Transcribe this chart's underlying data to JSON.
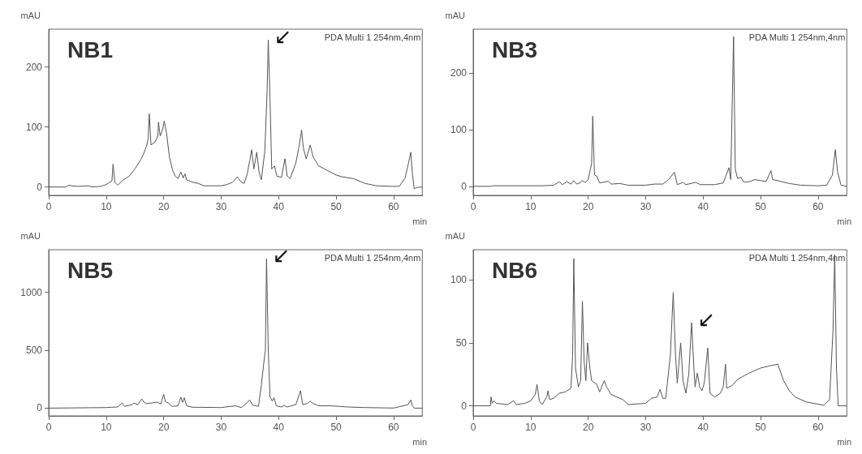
{
  "chart_data": [
    {
      "type": "line",
      "title": "NB1",
      "xlabel": "min",
      "ylabel": "mAU",
      "xlim": [
        0,
        65
      ],
      "xticks": [
        0,
        10,
        20,
        30,
        40,
        50,
        60
      ],
      "ylim": [
        -14,
        263
      ],
      "yticks": [
        0,
        100,
        200
      ],
      "grid": false,
      "marker": "none",
      "line_style": "solid",
      "annotations": [
        "PDA Multi 1 254nm,4nm",
        {
          "text": "↙",
          "x": 38.2,
          "y": 245
        }
      ],
      "series": [
        {
          "color": "#555555",
          "x": [
            0,
            3,
            3.5,
            4,
            5,
            7,
            7.5,
            9,
            10,
            11,
            11.2,
            11.5,
            12,
            13,
            14,
            15,
            16,
            16.5,
            17,
            17.3,
            17.5,
            17.8,
            18.5,
            19,
            19.1,
            19.4,
            19.8,
            20.1,
            20.5,
            21,
            21.5,
            22,
            22.5,
            23,
            23.4,
            23.7,
            24,
            25,
            26,
            27,
            30,
            31,
            32,
            32.8,
            33.5,
            34,
            34.5,
            35,
            35.3,
            35.7,
            36.2,
            36.6,
            37,
            37.6,
            38,
            38.2,
            38.5,
            38.8,
            39.3,
            39.7,
            40.5,
            41.1,
            41.5,
            42,
            43,
            43.6,
            44,
            44.3,
            44.8,
            45.5,
            46,
            47,
            48,
            49,
            50,
            51,
            53,
            55,
            57,
            60,
            61,
            62,
            62.6,
            63,
            63.3,
            63.6,
            64,
            65
          ],
          "values": [
            0,
            0,
            3,
            2,
            1,
            2,
            0,
            1,
            4,
            10,
            38,
            8,
            3,
            12,
            18,
            30,
            45,
            55,
            68,
            80,
            122,
            70,
            75,
            85,
            108,
            85,
            95,
            110,
            90,
            50,
            30,
            18,
            14,
            25,
            15,
            22,
            12,
            8,
            6,
            2,
            2,
            4,
            8,
            17,
            8,
            6,
            20,
            45,
            62,
            30,
            58,
            25,
            12,
            60,
            160,
            245,
            150,
            30,
            35,
            18,
            16,
            47,
            18,
            14,
            40,
            70,
            95,
            65,
            47,
            70,
            50,
            35,
            30,
            25,
            20,
            17,
            14,
            6,
            2,
            1,
            1,
            15,
            40,
            58,
            20,
            -3,
            -1,
            0
          ]
        }
      ]
    },
    {
      "type": "line",
      "title": "NB3",
      "xlabel": "min",
      "ylabel": "mAU",
      "xlim": [
        0,
        65
      ],
      "xticks": [
        0,
        10,
        20,
        30,
        40,
        50,
        60
      ],
      "ylim": [
        -16,
        278
      ],
      "yticks": [
        0,
        100,
        200
      ],
      "grid": false,
      "marker": "none",
      "line_style": "solid",
      "annotations": [
        "PDA Multi 1 254nm,4nm"
      ],
      "series": [
        {
          "color": "#555555",
          "x": [
            0,
            3,
            3.5,
            12,
            14,
            15,
            15.5,
            16.3,
            17,
            17.5,
            18,
            18.5,
            19,
            19.5,
            20,
            20.6,
            20.8,
            21.1,
            21.5,
            22,
            23.5,
            24,
            25.5,
            27,
            30,
            31.5,
            33,
            34,
            35,
            35.3,
            35.5,
            36.5,
            37,
            38.7,
            39.5,
            42,
            43.5,
            44.5,
            44.8,
            45.3,
            45.6,
            46,
            46.6,
            47,
            48,
            49,
            50,
            51,
            51.8,
            52.1,
            53,
            55,
            57,
            60,
            61.5,
            62.5,
            63,
            63.4,
            64,
            65
          ],
          "values": [
            0,
            0,
            1,
            1,
            2,
            8,
            3,
            8,
            4,
            10,
            4,
            6,
            10,
            7,
            12,
            40,
            124,
            20,
            18,
            6,
            9,
            4,
            5,
            2,
            2,
            4,
            4,
            12,
            25,
            12,
            3,
            7,
            3,
            7,
            3,
            3,
            6,
            33,
            12,
            265,
            30,
            14,
            16,
            8,
            8,
            12,
            10,
            9,
            28,
            12,
            10,
            5,
            2,
            1,
            2,
            20,
            65,
            25,
            2,
            0
          ]
        }
      ]
    },
    {
      "type": "line",
      "title": "NB5",
      "xlabel": "min",
      "ylabel": "mAU",
      "xlim": [
        0,
        65
      ],
      "xticks": [
        0,
        10,
        20,
        30,
        40,
        50,
        60
      ],
      "ylim": [
        -67,
        1368
      ],
      "yticks": [
        0,
        500,
        {
          "value": 1000,
          "label": "1000"
        }
      ],
      "grid": false,
      "marker": "none",
      "line_style": "solid",
      "annotations": [
        "PDA Multi 1 254nm,4nm",
        {
          "text": "↙",
          "x": 37.9,
          "y": 1290
        }
      ],
      "series": [
        {
          "color": "#555555",
          "x": [
            0,
            10,
            11,
            12,
            12.8,
            13.2,
            14.5,
            14.8,
            15.5,
            16.2,
            16.6,
            17,
            18,
            18.5,
            19,
            19.5,
            20,
            20.3,
            20.8,
            21.5,
            22.5,
            23,
            23.3,
            23.6,
            24,
            25,
            30,
            32.5,
            33.5,
            34,
            35,
            35.5,
            36,
            36.5,
            37,
            37.4,
            37.7,
            37.9,
            38.2,
            38.5,
            38.9,
            39.2,
            39.6,
            40.5,
            41,
            41.5,
            43,
            43.8,
            44.2,
            45,
            45.5,
            46,
            47,
            49,
            50.5,
            52,
            55,
            60,
            62.5,
            63,
            63.3,
            63.6,
            65
          ],
          "values": [
            0,
            5,
            8,
            10,
            45,
            15,
            30,
            45,
            30,
            80,
            50,
            40,
            45,
            50,
            50,
            35,
            120,
            55,
            45,
            15,
            20,
            95,
            50,
            90,
            20,
            8,
            5,
            20,
            5,
            25,
            70,
            25,
            20,
            15,
            200,
            380,
            500,
            1290,
            500,
            100,
            60,
            90,
            20,
            10,
            22,
            10,
            30,
            150,
            30,
            40,
            60,
            40,
            20,
            20,
            15,
            10,
            5,
            1,
            30,
            70,
            20,
            0,
            0
          ]
        }
      ]
    },
    {
      "type": "line",
      "title": "NB6",
      "xlabel": "min",
      "ylabel": "mAU",
      "xlim": [
        0,
        65
      ],
      "xticks": [
        0,
        10,
        20,
        30,
        40,
        50,
        60
      ],
      "ylim": [
        -8,
        124
      ],
      "yticks": [
        0,
        50,
        100
      ],
      "grid": false,
      "marker": "none",
      "line_style": "solid",
      "annotations": [
        "PDA Multi 1 254nm,4nm",
        {
          "text": "↙",
          "x": 38,
          "y": 66
        }
      ],
      "series": [
        {
          "color": "#555555",
          "x": [
            0,
            3,
            3.1,
            3.3,
            3.6,
            4,
            6,
            7,
            7.5,
            9,
            10,
            10.8,
            11.1,
            11.5,
            12,
            12.8,
            13,
            13.3,
            14,
            15,
            16,
            17,
            17.3,
            17.5,
            17.8,
            18.3,
            18.7,
            19,
            19.3,
            19.6,
            19.9,
            20.3,
            20.6,
            21.5,
            22,
            22.8,
            23.2,
            24,
            26,
            27,
            30,
            31,
            32,
            32.5,
            33,
            33.5,
            34.3,
            34.8,
            35.2,
            35.5,
            36.1,
            36.5,
            37,
            37.5,
            38,
            38.4,
            38.6,
            39,
            39.4,
            39.8,
            40.2,
            40.8,
            41.2,
            42,
            43,
            43.5,
            43.9,
            44.1,
            45,
            46,
            48,
            50,
            51.8,
            53,
            54,
            55,
            56,
            58,
            61,
            62,
            62.6,
            62.9,
            63.2,
            63.5,
            64,
            65
          ],
          "values": [
            0,
            0,
            7,
            2,
            4,
            2,
            1,
            4,
            1,
            2,
            4,
            9,
            17,
            4,
            1,
            7,
            12,
            5,
            6,
            10,
            11,
            14,
            40,
            117,
            30,
            15,
            20,
            83,
            35,
            20,
            50,
            30,
            20,
            17,
            11,
            20,
            15,
            9,
            5,
            1,
            2,
            6,
            7,
            13,
            6,
            6,
            40,
            90,
            40,
            18,
            50,
            20,
            10,
            25,
            66,
            30,
            15,
            26,
            15,
            12,
            18,
            46,
            10,
            7,
            10,
            15,
            33,
            14,
            16,
            21,
            26,
            30,
            32,
            33,
            20,
            12,
            7,
            3,
            0.5,
            5,
            60,
            120,
            30,
            0,
            0,
            0
          ]
        }
      ]
    }
  ]
}
